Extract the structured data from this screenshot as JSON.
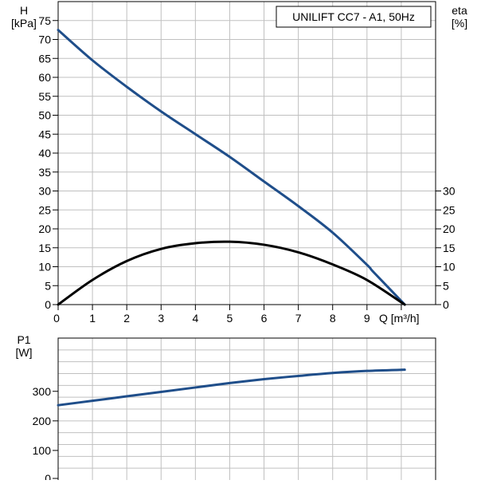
{
  "chart_data": [
    {
      "type": "line",
      "title": "UNILIFT CC7 - A1, 50Hz",
      "xlabel": "Q [m³/h]",
      "ylabel_left_name": "H",
      "ylabel_left_unit": "[kPa]",
      "ylabel_right_name": "eta",
      "ylabel_right_unit": "[%]",
      "xlim": [
        0,
        11
      ],
      "ylim_left": [
        0,
        80
      ],
      "ylim_right": [
        0,
        80
      ],
      "x_ticks": [
        0,
        1,
        2,
        3,
        4,
        5,
        6,
        7,
        8,
        9
      ],
      "y_ticks_left": [
        0,
        5,
        10,
        15,
        20,
        25,
        30,
        35,
        40,
        45,
        50,
        55,
        60,
        65,
        70,
        75
      ],
      "y_ticks_right": [
        0,
        5,
        10,
        15,
        20,
        25,
        30
      ],
      "grid": true,
      "series": [
        {
          "axis": "left",
          "color": "#1f4e8a",
          "x": [
            0,
            1,
            2,
            3,
            4,
            5,
            6,
            7,
            8,
            9,
            9.2,
            10.1
          ],
          "y": [
            72.5,
            64.5,
            57.5,
            51,
            45,
            39,
            32.5,
            26,
            19,
            10.5,
            8.5,
            0
          ]
        },
        {
          "axis": "right",
          "color": "#000000",
          "x": [
            0,
            1,
            2,
            3,
            4,
            5,
            6,
            7,
            8,
            9,
            10.1
          ],
          "y": [
            0,
            6.5,
            11.5,
            14.7,
            16.2,
            16.6,
            15.8,
            13.8,
            10.6,
            6.5,
            0
          ]
        }
      ]
    },
    {
      "type": "line",
      "ylabel_name": "P1",
      "ylabel_unit": "[W]",
      "xlim": [
        0,
        11
      ],
      "ylim": [
        0,
        480
      ],
      "y_ticks": [
        0,
        100,
        200,
        300
      ],
      "grid": true,
      "series": [
        {
          "color": "#1f4e8a",
          "x": [
            0,
            1,
            2,
            3,
            4,
            5,
            6,
            7,
            8,
            9,
            10.1
          ],
          "y": [
            253,
            268,
            283,
            298,
            313,
            328,
            341,
            352,
            362,
            369,
            373
          ]
        }
      ]
    }
  ]
}
